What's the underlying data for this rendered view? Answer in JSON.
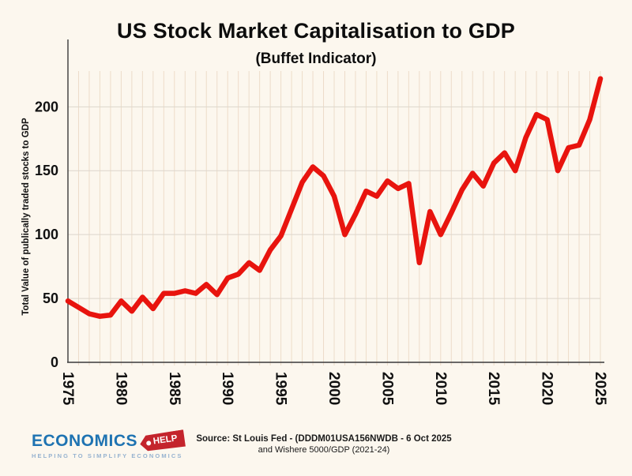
{
  "title": "US Stock Market Capitalisation to GDP",
  "subtitle": "(Buffet Indicator)",
  "footer": {
    "logo_text": "ECONOMICS",
    "logo_tag": "HELP",
    "logo_tagline": "HELPING TO SIMPLIFY ECONOMICS",
    "source_line1": "Source: St Louis Fed - (DDDM01USA156NWDB - 6 Oct 2025",
    "source_line2": "and Wishere 5000/GDP (2021-24)"
  },
  "chart_data": {
    "type": "line",
    "title": "US Stock Market Capitalisation to GDP (Buffet Indicator)",
    "xlabel": "",
    "ylabel": "Total Value of publically traded stocks  to GDP",
    "x": [
      1975,
      1976,
      1977,
      1978,
      1979,
      1980,
      1981,
      1982,
      1983,
      1984,
      1985,
      1986,
      1987,
      1988,
      1989,
      1990,
      1991,
      1992,
      1993,
      1994,
      1995,
      1996,
      1997,
      1998,
      1999,
      2000,
      2001,
      2002,
      2003,
      2004,
      2005,
      2006,
      2007,
      2008,
      2009,
      2010,
      2011,
      2012,
      2013,
      2014,
      2015,
      2016,
      2017,
      2018,
      2019,
      2020,
      2021,
      2022,
      2023,
      2024,
      2025
    ],
    "series": [
      {
        "name": "US stock market capitalisation to GDP (%)",
        "values": [
          48,
          43,
          38,
          36,
          37,
          48,
          40,
          51,
          42,
          54,
          54,
          56,
          54,
          61,
          53,
          66,
          69,
          78,
          72,
          88,
          99,
          120,
          141,
          153,
          146,
          130,
          100,
          116,
          134,
          130,
          142,
          136,
          140,
          78,
          118,
          100,
          117,
          135,
          148,
          138,
          156,
          164,
          150,
          176,
          194,
          190,
          150,
          168,
          170,
          190,
          222
        ]
      }
    ],
    "ylim": [
      0,
      228
    ],
    "yticks": [
      0,
      50,
      100,
      150,
      200
    ],
    "xticks": [
      1975,
      1980,
      1985,
      1990,
      1995,
      2000,
      2005,
      2010,
      2015,
      2020,
      2025
    ],
    "grid": true,
    "legend": false,
    "line_color": "#e8140e",
    "colors": {
      "background": "#fcf7ee",
      "vertical_grid": "#eddcc9",
      "horizontal_grid": "#dcd6cc",
      "axis": "#3a3a3a",
      "tick_text": "#111111"
    }
  }
}
